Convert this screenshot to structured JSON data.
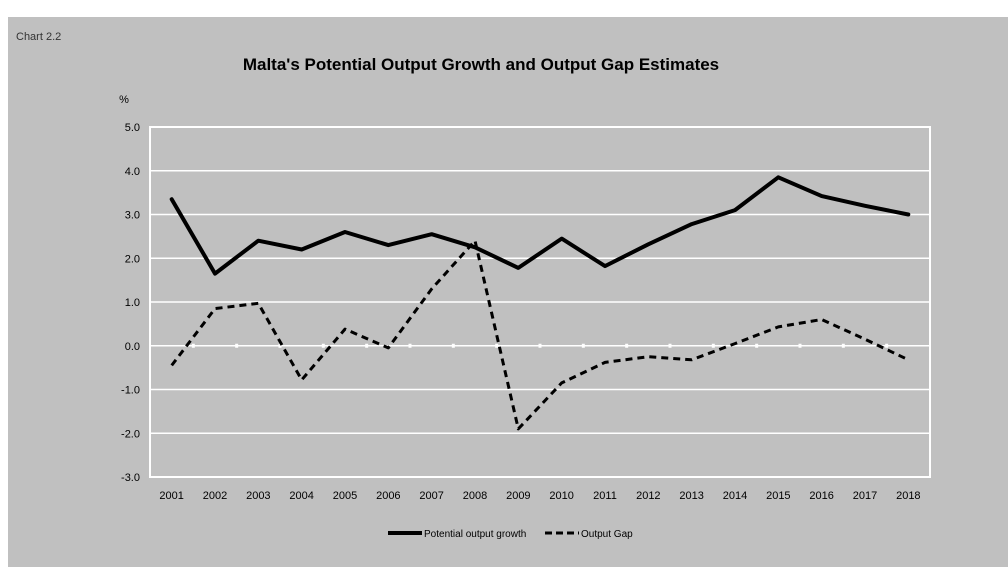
{
  "chart_label": "Chart 2.2",
  "chart_data": {
    "type": "line",
    "title": "Malta's Potential Output Growth and Output Gap Estimates",
    "ylabel": "%",
    "xlabel": "",
    "ylim": [
      -3.0,
      5.0
    ],
    "y_ticks": [
      "5.0",
      "4.0",
      "3.0",
      "2.0",
      "1.0",
      "0.0",
      "-1.0",
      "-2.0",
      "-3.0"
    ],
    "grid": true,
    "legend_position": "bottom",
    "categories": [
      "2001",
      "2002",
      "2003",
      "2004",
      "2005",
      "2006",
      "2007",
      "2008",
      "2009",
      "2010",
      "2011",
      "2012",
      "2013",
      "2014",
      "2015",
      "2016",
      "2017",
      "2018"
    ],
    "series": [
      {
        "name": "Potential output growth",
        "style": "solid",
        "values": [
          3.35,
          1.65,
          2.4,
          2.2,
          2.6,
          2.3,
          2.55,
          2.25,
          1.78,
          2.45,
          1.82,
          2.32,
          2.78,
          3.1,
          3.85,
          3.42,
          3.2,
          3.0
        ]
      },
      {
        "name": "Output Gap",
        "style": "dashed",
        "values": [
          -0.45,
          0.85,
          0.97,
          -0.78,
          0.38,
          -0.05,
          1.3,
          2.4,
          -1.9,
          -0.85,
          -0.38,
          -0.25,
          -0.32,
          0.05,
          0.43,
          0.6,
          0.15,
          -0.32
        ]
      }
    ]
  }
}
